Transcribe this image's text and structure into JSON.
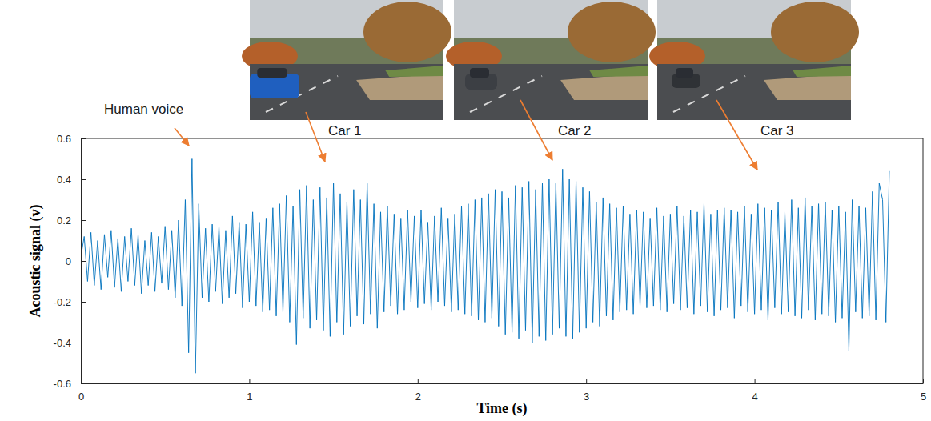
{
  "chart_data": {
    "type": "line",
    "x_label": "Time (s)",
    "y_label": "Acoustic signal (v)",
    "annotations": [
      "Human voice",
      "Car 1",
      "Car 2",
      "Car 3"
    ],
    "color": "#0072bd",
    "grid": false,
    "xlim": [
      0,
      5
    ],
    "ylim": [
      -0.6,
      0.6
    ],
    "xticks": [
      0,
      1,
      2,
      3,
      4,
      5
    ],
    "yticks": [
      -0.6,
      -0.4,
      -0.2,
      0,
      0.2,
      0.4,
      0.6
    ],
    "x": [
      0,
      0.02,
      0.04,
      0.06,
      0.08,
      0.1,
      0.12,
      0.14,
      0.16,
      0.18,
      0.2,
      0.22,
      0.24,
      0.26,
      0.28,
      0.3,
      0.32,
      0.34,
      0.36,
      0.38,
      0.4,
      0.42,
      0.44,
      0.46,
      0.48,
      0.5,
      0.52,
      0.54,
      0.56,
      0.58,
      0.6,
      0.62,
      0.64,
      0.66,
      0.68,
      0.7,
      0.72,
      0.74,
      0.76,
      0.78,
      0.8,
      0.82,
      0.84,
      0.86,
      0.88,
      0.9,
      0.92,
      0.94,
      0.96,
      0.98,
      1,
      1.02,
      1.04,
      1.06,
      1.08,
      1.1,
      1.12,
      1.14,
      1.16,
      1.18,
      1.2,
      1.22,
      1.24,
      1.26,
      1.28,
      1.3,
      1.32,
      1.34,
      1.36,
      1.38,
      1.4,
      1.42,
      1.44,
      1.46,
      1.48,
      1.5,
      1.52,
      1.54,
      1.56,
      1.58,
      1.6,
      1.62,
      1.64,
      1.66,
      1.68,
      1.7,
      1.72,
      1.74,
      1.76,
      1.78,
      1.8,
      1.82,
      1.84,
      1.86,
      1.88,
      1.9,
      1.92,
      1.94,
      1.96,
      1.98,
      2,
      2.02,
      2.04,
      2.06,
      2.08,
      2.1,
      2.12,
      2.14,
      2.16,
      2.18,
      2.2,
      2.22,
      2.24,
      2.26,
      2.28,
      2.3,
      2.32,
      2.34,
      2.36,
      2.38,
      2.4,
      2.42,
      2.44,
      2.46,
      2.48,
      2.5,
      2.52,
      2.54,
      2.56,
      2.58,
      2.6,
      2.62,
      2.64,
      2.66,
      2.68,
      2.7,
      2.72,
      2.74,
      2.76,
      2.78,
      2.8,
      2.82,
      2.84,
      2.86,
      2.88,
      2.9,
      2.92,
      2.94,
      2.96,
      2.98,
      3,
      3.02,
      3.04,
      3.06,
      3.08,
      3.1,
      3.12,
      3.14,
      3.16,
      3.18,
      3.2,
      3.22,
      3.24,
      3.26,
      3.28,
      3.3,
      3.32,
      3.34,
      3.36,
      3.38,
      3.4,
      3.42,
      3.44,
      3.46,
      3.48,
      3.5,
      3.52,
      3.54,
      3.56,
      3.58,
      3.6,
      3.62,
      3.64,
      3.66,
      3.68,
      3.7,
      3.72,
      3.74,
      3.76,
      3.78,
      3.8,
      3.82,
      3.84,
      3.86,
      3.88,
      3.9,
      3.92,
      3.94,
      3.96,
      3.98,
      4,
      4.02,
      4.04,
      4.06,
      4.08,
      4.1,
      4.12,
      4.14,
      4.16,
      4.18,
      4.2,
      4.22,
      4.24,
      4.26,
      4.28,
      4.3,
      4.32,
      4.34,
      4.36,
      4.38,
      4.4,
      4.42,
      4.44,
      4.46,
      4.48,
      4.5,
      4.52,
      4.54,
      4.56,
      4.58,
      4.6,
      4.62,
      4.64,
      4.66,
      4.68,
      4.7,
      4.72,
      4.74,
      4.76,
      4.78,
      4.8
    ],
    "values": [
      0.02,
      0.12,
      -0.1,
      0.14,
      -0.12,
      0.1,
      -0.14,
      0.13,
      -0.08,
      0.15,
      -0.13,
      0.11,
      -0.15,
      0.12,
      -0.1,
      0.16,
      -0.12,
      0.13,
      -0.16,
      0.1,
      -0.12,
      0.14,
      -0.15,
      0.12,
      -0.11,
      0.17,
      -0.14,
      0.15,
      -0.18,
      0.2,
      -0.22,
      0.3,
      -0.45,
      0.5,
      -0.55,
      0.28,
      -0.18,
      0.16,
      -0.2,
      0.18,
      -0.15,
      0.17,
      -0.21,
      0.15,
      -0.18,
      0.22,
      -0.16,
      0.19,
      -0.23,
      0.18,
      -0.2,
      0.24,
      -0.22,
      0.19,
      -0.25,
      0.21,
      -0.24,
      0.26,
      -0.27,
      0.28,
      -0.25,
      0.32,
      -0.3,
      0.27,
      -0.41,
      0.35,
      -0.28,
      0.37,
      -0.33,
      0.3,
      -0.29,
      0.36,
      -0.34,
      0.31,
      -0.37,
      0.38,
      -0.3,
      0.33,
      -0.36,
      0.29,
      -0.32,
      0.35,
      -0.27,
      0.3,
      -0.31,
      0.38,
      -0.26,
      0.28,
      -0.33,
      0.24,
      -0.25,
      0.27,
      -0.22,
      0.23,
      -0.26,
      0.21,
      -0.24,
      0.25,
      -0.2,
      0.22,
      -0.23,
      0.25,
      -0.21,
      0.19,
      -0.24,
      0.22,
      -0.2,
      0.26,
      -0.22,
      0.21,
      -0.25,
      0.23,
      -0.24,
      0.27,
      -0.26,
      0.28,
      -0.27,
      0.3,
      -0.29,
      0.31,
      -0.3,
      0.33,
      -0.28,
      0.35,
      -0.32,
      0.34,
      -0.36,
      0.31,
      -0.35,
      0.37,
      -0.38,
      0.36,
      -0.34,
      0.39,
      -0.4,
      0.35,
      -0.37,
      0.38,
      -0.39,
      0.4,
      -0.36,
      0.38,
      -0.33,
      0.45,
      -0.37,
      0.4,
      -0.38,
      0.39,
      -0.35,
      0.36,
      -0.33,
      0.34,
      -0.3,
      0.29,
      -0.32,
      0.31,
      -0.27,
      0.28,
      -0.29,
      0.26,
      -0.25,
      0.27,
      -0.24,
      0.23,
      -0.26,
      0.25,
      -0.22,
      0.24,
      -0.23,
      0.21,
      -0.22,
      0.26,
      -0.24,
      0.22,
      -0.25,
      0.23,
      -0.21,
      0.27,
      -0.24,
      0.22,
      -0.23,
      0.25,
      -0.26,
      0.24,
      -0.22,
      0.28,
      -0.25,
      0.23,
      -0.27,
      0.25,
      -0.24,
      0.26,
      -0.23,
      0.25,
      -0.28,
      0.24,
      -0.22,
      0.27,
      -0.25,
      0.23,
      -0.26,
      0.28,
      -0.24,
      0.26,
      -0.29,
      0.25,
      -0.23,
      0.29,
      -0.26,
      0.24,
      -0.25,
      0.3,
      -0.27,
      0.26,
      -0.28,
      0.31,
      -0.24,
      0.27,
      -0.29,
      0.28,
      -0.26,
      0.29,
      -0.27,
      0.25,
      -0.3,
      0.27,
      -0.28,
      0.24,
      -0.44,
      0.3,
      -0.25,
      0.27,
      -0.28,
      0.26,
      -0.27,
      0.34,
      -0.29,
      0.38,
      0.3,
      -0.3,
      0.44
    ]
  }
}
